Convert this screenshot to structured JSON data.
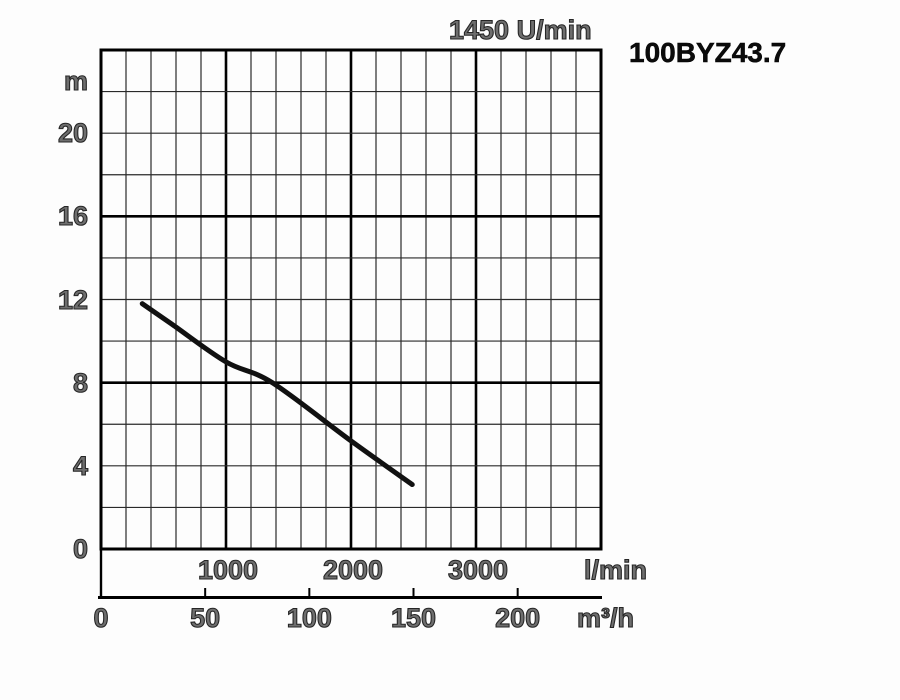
{
  "header": {
    "rpm_label": "1450 U/min",
    "model_label": "100BYZ43.7"
  },
  "axes": {
    "y_unit": "m",
    "x_primary_unit": "l/min",
    "x_secondary_unit": "m³/h"
  },
  "chart_data": {
    "type": "line",
    "title": "1450 U/min",
    "subtitle": "100BYZ43.7",
    "ylabel": "m",
    "xlabel_primary": "l/min",
    "xlabel_secondary": "m³/h",
    "ylim": [
      0,
      24
    ],
    "xlim_lmin": [
      0,
      4000
    ],
    "y_minor_step": 2,
    "y_bold_step": 8,
    "y_tick_labels": [
      20,
      16,
      12,
      8,
      4,
      0
    ],
    "x_minor_step_lmin": 200,
    "x_major_step_lmin": 1000,
    "x_tick_labels_lmin": [
      1000,
      2000,
      3000
    ],
    "x_tick_labels_m3h": [
      0,
      50,
      100,
      150,
      200
    ],
    "lmin_per_m3h": 16.6667,
    "grid": true,
    "legend": "none",
    "series": [
      {
        "name": "head-capacity curve 100BYZ43.7 at 1450 U/min",
        "x_lmin": [
          330,
          570,
          1000,
          1370,
          2000,
          2490
        ],
        "y_m": [
          11.8,
          10.8,
          9.0,
          8.0,
          5.2,
          3.1
        ],
        "color": "#111111"
      }
    ]
  },
  "colors": {
    "background": "#fdfdfd",
    "grid_minor": "#2a2a2a",
    "grid_major": "#000000",
    "frame": "#000000",
    "curve": "#111111",
    "label_text": "#6e6e6e",
    "label_outline": "#262626",
    "model_text": "#0b0b0b"
  }
}
